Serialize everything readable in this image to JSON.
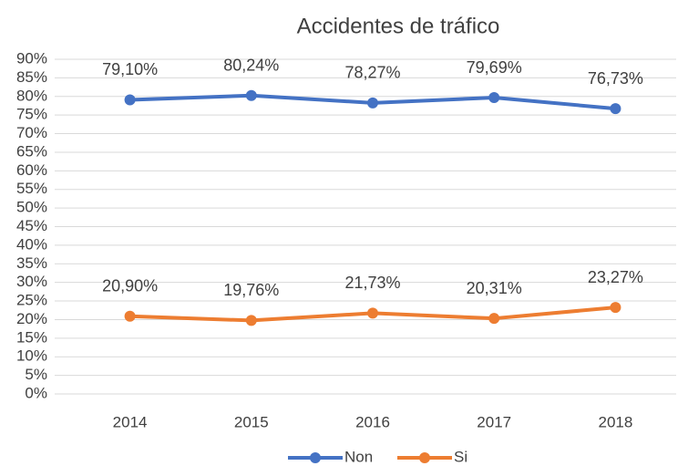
{
  "chart_data": {
    "type": "line",
    "title": "Accidentes de tráfico",
    "categories": [
      "2014",
      "2015",
      "2016",
      "2017",
      "2018"
    ],
    "series": [
      {
        "name": "Non",
        "color": "#4472c4",
        "values": [
          79.1,
          80.24,
          78.27,
          79.69,
          76.73
        ],
        "value_labels": [
          "79,10%",
          "80,24%",
          "78,27%",
          "79,69%",
          "76,73%"
        ]
      },
      {
        "name": "Si",
        "color": "#ed7d31",
        "values": [
          20.9,
          19.76,
          21.73,
          20.31,
          23.27
        ],
        "value_labels": [
          "20,90%",
          "19,76%",
          "21,73%",
          "20,31%",
          "23,27%"
        ]
      }
    ],
    "ylim": [
      0,
      90
    ],
    "yticks": [
      {
        "value": 0,
        "label": "0%"
      },
      {
        "value": 5,
        "label": "5%"
      },
      {
        "value": 10,
        "label": "10%"
      },
      {
        "value": 15,
        "label": "15%"
      },
      {
        "value": 20,
        "label": "20%"
      },
      {
        "value": 25,
        "label": "25%"
      },
      {
        "value": 30,
        "label": "30%"
      },
      {
        "value": 35,
        "label": "35%"
      },
      {
        "value": 40,
        "label": "40%"
      },
      {
        "value": 45,
        "label": "45%"
      },
      {
        "value": 50,
        "label": "50%"
      },
      {
        "value": 55,
        "label": "55%"
      },
      {
        "value": 60,
        "label": "60%"
      },
      {
        "value": 65,
        "label": "65%"
      },
      {
        "value": 70,
        "label": "70%"
      },
      {
        "value": 75,
        "label": "75%"
      },
      {
        "value": 80,
        "label": "80%"
      },
      {
        "value": 85,
        "label": "85%"
      },
      {
        "value": 90,
        "label": "90%"
      }
    ],
    "grid": true,
    "legend": "bottom"
  }
}
